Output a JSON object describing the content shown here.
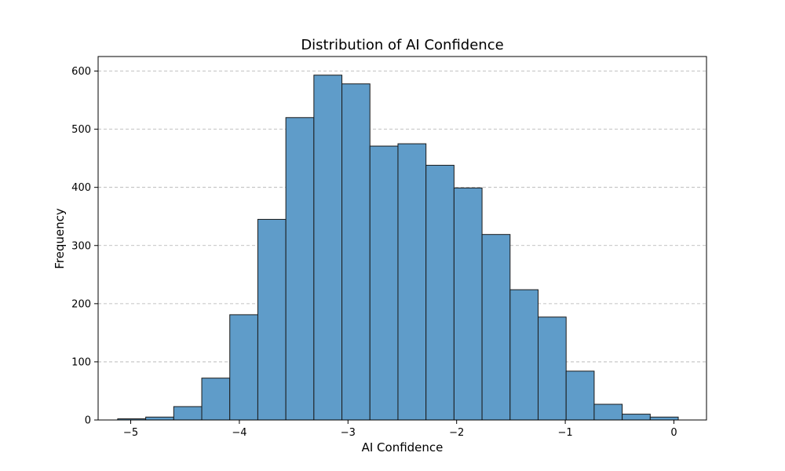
{
  "chart_data": {
    "type": "bar",
    "title": "Distribution of AI Confidence",
    "xlabel": "AI Confidence",
    "ylabel": "Frequency",
    "xlim": [
      -5.3,
      0.3
    ],
    "ylim": [
      0,
      625
    ],
    "grid": "y",
    "bar_color": "#5f9cc9",
    "edge_color": "#1a1a1a",
    "grid_color": "#b0b0b0",
    "xticks": [
      {
        "value": -5,
        "label": "−5"
      },
      {
        "value": -4,
        "label": "−4"
      },
      {
        "value": -3,
        "label": "−3"
      },
      {
        "value": -2,
        "label": "−2"
      },
      {
        "value": -1,
        "label": "−1"
      },
      {
        "value": 0,
        "label": "0"
      }
    ],
    "yticks": [
      {
        "value": 0,
        "label": "0"
      },
      {
        "value": 100,
        "label": "100"
      },
      {
        "value": 200,
        "label": "200"
      },
      {
        "value": 300,
        "label": "300"
      },
      {
        "value": 400,
        "label": "400"
      },
      {
        "value": 500,
        "label": "500"
      },
      {
        "value": 600,
        "label": "600"
      }
    ],
    "bin_edges": [
      -5.12,
      -4.862,
      -4.604,
      -4.346,
      -4.088,
      -3.83,
      -3.572,
      -3.314,
      -3.056,
      -2.798,
      -2.54,
      -2.282,
      -2.024,
      -1.766,
      -1.508,
      -1.25,
      -0.992,
      -0.734,
      -0.476,
      -0.218,
      0.04
    ],
    "values": [
      2,
      5,
      23,
      72,
      181,
      345,
      520,
      593,
      578,
      471,
      475,
      438,
      399,
      319,
      224,
      177,
      84,
      27,
      10,
      5
    ]
  }
}
